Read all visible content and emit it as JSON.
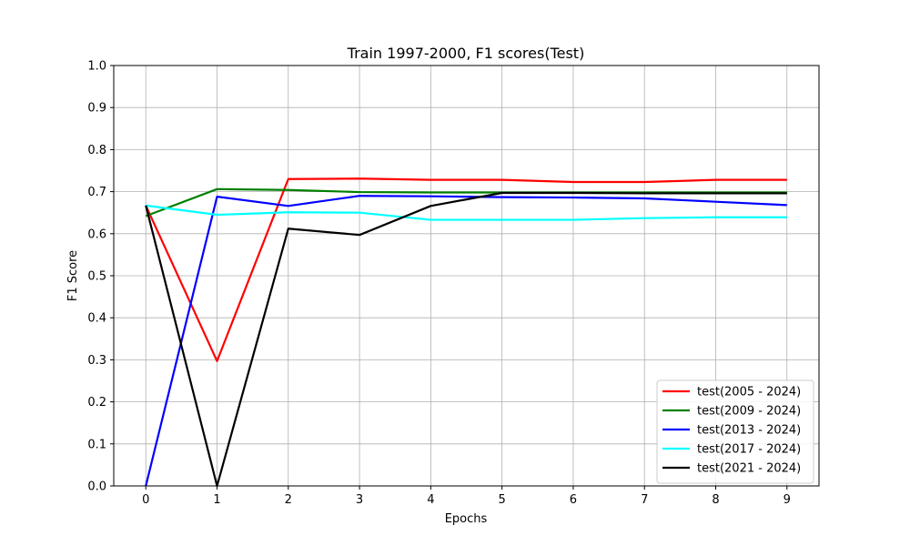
{
  "chart_data": {
    "type": "line",
    "title": "Train 1997-2000, F1 scores(Test)",
    "xlabel": "Epochs",
    "ylabel": "F1 Score",
    "x": [
      0,
      1,
      2,
      3,
      4,
      5,
      6,
      7,
      8,
      9
    ],
    "xlim": [
      -0.45,
      9.45
    ],
    "ylim": [
      0.0,
      1.0
    ],
    "xticks": [
      0,
      1,
      2,
      3,
      4,
      5,
      6,
      7,
      8,
      9
    ],
    "yticks": [
      0.0,
      0.1,
      0.2,
      0.3,
      0.4,
      0.5,
      0.6,
      0.7,
      0.8,
      0.9,
      1.0
    ],
    "grid": true,
    "legend_position": "lower-right",
    "series": [
      {
        "name": "test(2005 - 2024)",
        "color": "#ff0000",
        "values": [
          0.667,
          0.297,
          0.73,
          0.731,
          0.728,
          0.728,
          0.723,
          0.723,
          0.728,
          0.728
        ]
      },
      {
        "name": "test(2009 - 2024)",
        "color": "#008000",
        "values": [
          0.642,
          0.706,
          0.704,
          0.699,
          0.698,
          0.698,
          0.698,
          0.698,
          0.698,
          0.698
        ]
      },
      {
        "name": "test(2013 - 2024)",
        "color": "#0000ff",
        "values": [
          0.0,
          0.688,
          0.666,
          0.69,
          0.689,
          0.687,
          0.686,
          0.684,
          0.676,
          0.668
        ]
      },
      {
        "name": "test(2017 - 2024)",
        "color": "#00ffff",
        "values": [
          0.667,
          0.645,
          0.651,
          0.65,
          0.633,
          0.633,
          0.633,
          0.637,
          0.639,
          0.639
        ]
      },
      {
        "name": "test(2021 - 2024)",
        "color": "#000000",
        "values": [
          0.667,
          0.0,
          0.612,
          0.597,
          0.666,
          0.697,
          0.697,
          0.696,
          0.696,
          0.696
        ]
      }
    ]
  }
}
